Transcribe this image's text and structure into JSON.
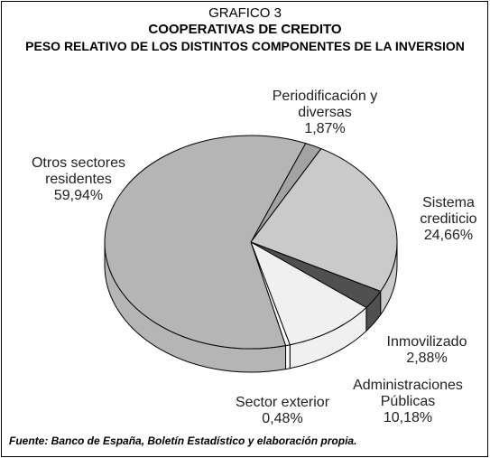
{
  "chart_data": {
    "type": "pie3d",
    "title": "GRAFICO 3",
    "subtitle": "COOPERATIVAS DE CREDITO",
    "subtitle2": "PESO RELATIVO DE LOS DISTINTOS COMPONENTES DE LA INVERSION",
    "source": "Fuente: Banco de España, Boletín Estadístico y elaboración propia.",
    "categories": [
      "Periodificación y diversas",
      "Sistema crediticio",
      "Inmovilizado",
      "Administraciones Públicas",
      "Sector exterior",
      "Otros sectores residentes"
    ],
    "values": [
      1.87,
      24.66,
      2.88,
      10.18,
      0.48,
      59.94
    ],
    "value_labels": [
      "1,87%",
      "24,66%",
      "2,88%",
      "10,18%",
      "0,48%",
      "59,94%"
    ],
    "colors": [
      "#a3a3a3",
      "#cacaca",
      "#505050",
      "#f0f0f0",
      "#ffffff",
      "#b5b5b5"
    ]
  }
}
